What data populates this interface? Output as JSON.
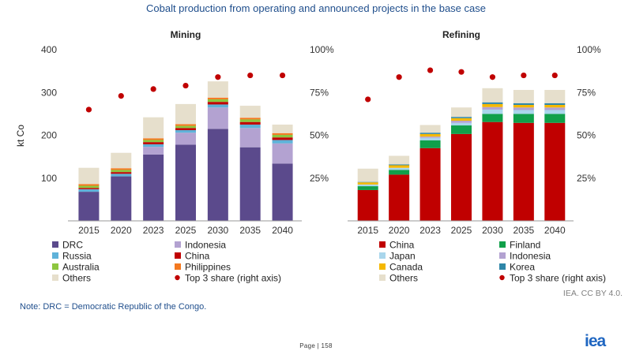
{
  "page": {
    "title": "Cobalt production from operating and announced projects in the base case",
    "note": "Note: DRC = Democratic Republic of the Congo.",
    "credit": "IEA. CC BY 4.0.",
    "page_number": "Page | 158",
    "logo": "iea"
  },
  "chart_data": [
    {
      "type": "bar",
      "stacked": true,
      "title": "Mining",
      "ylabel": "kt Co",
      "ylim": [
        0,
        400
      ],
      "yticks": [
        "100",
        "200",
        "300",
        "400"
      ],
      "y2lim": [
        0,
        100
      ],
      "y2ticks": [
        "25%",
        "50%",
        "75%",
        "100%"
      ],
      "categories": [
        "2015",
        "2020",
        "2023",
        "2025",
        "2030",
        "2035",
        "2040"
      ],
      "series": [
        {
          "name": "DRC",
          "color": "#5b4a8c",
          "values": [
            68,
            104,
            155,
            178,
            215,
            172,
            134
          ]
        },
        {
          "name": "Indonesia",
          "color": "#b3a2d1",
          "values": [
            0,
            0,
            18,
            28,
            50,
            45,
            47
          ]
        },
        {
          "name": "Russia",
          "color": "#5fb2d9",
          "values": [
            6,
            6,
            6,
            6,
            7,
            8,
            8
          ]
        },
        {
          "name": "China",
          "color": "#c00000",
          "values": [
            3,
            4,
            5,
            5,
            6,
            6,
            6
          ]
        },
        {
          "name": "Australia",
          "color": "#8dc63f",
          "values": [
            5,
            5,
            5,
            5,
            6,
            6,
            6
          ]
        },
        {
          "name": "Philippines",
          "color": "#f47920",
          "values": [
            4,
            4,
            4,
            4,
            4,
            4,
            4
          ]
        },
        {
          "name": "Others",
          "color": "#e6dfcc",
          "values": [
            38,
            36,
            49,
            47,
            38,
            28,
            20
          ]
        }
      ],
      "top3_share": {
        "name": "Top 3 share (right axis)",
        "color": "#c00000",
        "values": [
          65,
          73,
          77,
          79,
          84,
          85,
          85
        ]
      },
      "legend": [
        {
          "label": "DRC",
          "color": "#5b4a8c",
          "marker": "square"
        },
        {
          "label": "Indonesia",
          "color": "#b3a2d1",
          "marker": "square"
        },
        {
          "label": "Russia",
          "color": "#5fb2d9",
          "marker": "square"
        },
        {
          "label": "China",
          "color": "#c00000",
          "marker": "square"
        },
        {
          "label": "Australia",
          "color": "#8dc63f",
          "marker": "square"
        },
        {
          "label": "Philippines",
          "color": "#f47920",
          "marker": "square"
        },
        {
          "label": "Others",
          "color": "#e6dfcc",
          "marker": "square"
        },
        {
          "label": "Top 3 share (right axis)",
          "color": "#c00000",
          "marker": "dot"
        }
      ]
    },
    {
      "type": "bar",
      "stacked": true,
      "title": "Refining",
      "ylabel": "",
      "ylim": [
        0,
        400
      ],
      "y2lim": [
        0,
        100
      ],
      "y2ticks": [
        "25%",
        "50%",
        "75%",
        "100%"
      ],
      "categories": [
        "2015",
        "2020",
        "2023",
        "2025",
        "2030",
        "2035",
        "2040"
      ],
      "series": [
        {
          "name": "China",
          "color": "#c00000",
          "values": [
            72,
            108,
            170,
            203,
            231,
            229,
            229
          ]
        },
        {
          "name": "Finland",
          "color": "#10a04a",
          "values": [
            9,
            11,
            18,
            20,
            19,
            21,
            21
          ]
        },
        {
          "name": "Japan",
          "color": "#a9d6ec",
          "values": [
            4,
            5,
            6,
            6,
            10,
            9,
            9
          ]
        },
        {
          "name": "Indonesia",
          "color": "#b3a2d1",
          "values": [
            0,
            0,
            3,
            5,
            6,
            6,
            6
          ]
        },
        {
          "name": "Canada",
          "color": "#f5b800",
          "values": [
            5,
            6,
            6,
            6,
            7,
            6,
            6
          ]
        },
        {
          "name": "Korea",
          "color": "#2e86a8",
          "values": [
            1,
            2,
            3,
            3,
            4,
            4,
            4
          ]
        },
        {
          "name": "Others",
          "color": "#e6dfcc",
          "values": [
            31,
            20,
            18,
            22,
            33,
            31,
            31
          ]
        }
      ],
      "top3_share": {
        "name": "Top 3 share (right axis)",
        "color": "#c00000",
        "values": [
          71,
          84,
          88,
          87,
          84,
          85,
          85
        ]
      },
      "legend": [
        {
          "label": "China",
          "color": "#c00000",
          "marker": "square"
        },
        {
          "label": "Finland",
          "color": "#10a04a",
          "marker": "square"
        },
        {
          "label": "Japan",
          "color": "#a9d6ec",
          "marker": "square"
        },
        {
          "label": "Indonesia",
          "color": "#b3a2d1",
          "marker": "square"
        },
        {
          "label": "Canada",
          "color": "#f5b800",
          "marker": "square"
        },
        {
          "label": "Korea",
          "color": "#2e86a8",
          "marker": "square"
        },
        {
          "label": "Others",
          "color": "#e6dfcc",
          "marker": "square"
        },
        {
          "label": "Top 3 share (right axis)",
          "color": "#c00000",
          "marker": "dot"
        }
      ]
    }
  ]
}
